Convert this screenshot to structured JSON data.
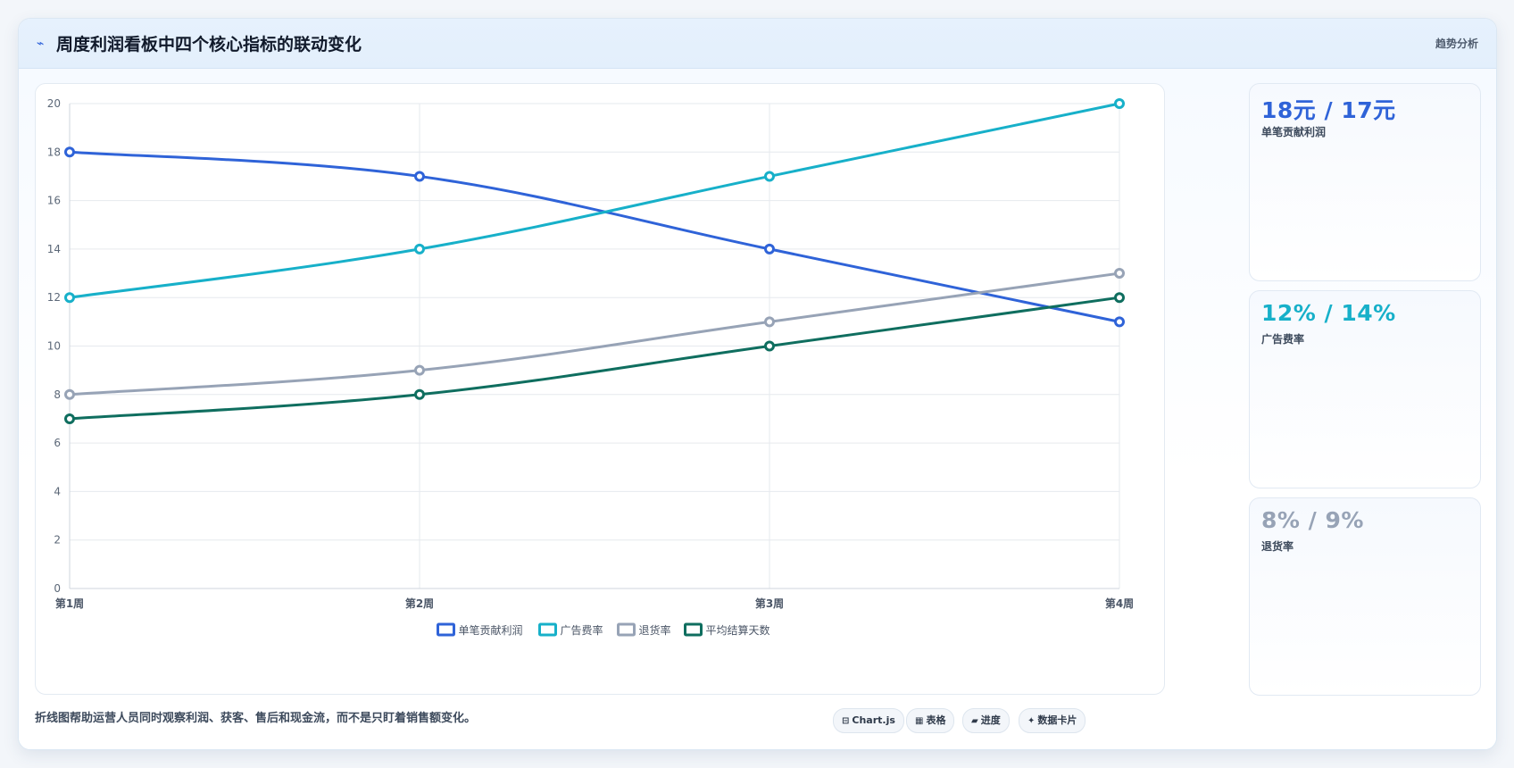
{
  "header": {
    "icon": "trend-line-icon",
    "title": "周度利润看板中四个核心指标的联动变化",
    "badge": "趋势分析"
  },
  "chart_data": {
    "type": "line",
    "title": "",
    "xlabel": "",
    "ylabel": "",
    "categories": [
      "第1周",
      "第2周",
      "第3周",
      "第4周"
    ],
    "ylim": [
      0,
      20
    ],
    "yticks": [
      0,
      2,
      4,
      6,
      8,
      10,
      12,
      14,
      16,
      18,
      20
    ],
    "grid": true,
    "legend_position": "bottom",
    "series": [
      {
        "name": "单笔贡献利润",
        "values": [
          18,
          17,
          14,
          11
        ],
        "color": "#2f63d8"
      },
      {
        "name": "广告费率",
        "values": [
          12,
          14,
          17,
          20
        ],
        "color": "#17b0c9"
      },
      {
        "name": "退货率",
        "values": [
          8,
          9,
          11,
          13
        ],
        "color": "#97a3b6"
      },
      {
        "name": "平均结算天数",
        "values": [
          7,
          8,
          10,
          12
        ],
        "color": "#0f6e5f"
      }
    ]
  },
  "kpis": [
    {
      "value": "18元 / 17元",
      "label": "单笔贡献利润",
      "color": "#2f63d8"
    },
    {
      "value": "12% / 14%",
      "label": "广告费率",
      "color": "#17b0c9"
    },
    {
      "value": "8% / 9%",
      "label": "退货率",
      "color": "#97a3b6"
    }
  ],
  "footer": {
    "description": "折线图帮助运营人员同时观察利润、获客、售后和现金流，而不是只盯着销售额变化。",
    "chips": [
      {
        "icon": "database-icon",
        "glyph": "⊟",
        "label": "Chart.js"
      },
      {
        "icon": "table-icon",
        "glyph": "▦",
        "label": "表格"
      },
      {
        "icon": "progress-icon",
        "glyph": "▰",
        "label": "进度"
      },
      {
        "icon": "sparkle-icon",
        "glyph": "✦",
        "label": "数据卡片"
      }
    ]
  }
}
